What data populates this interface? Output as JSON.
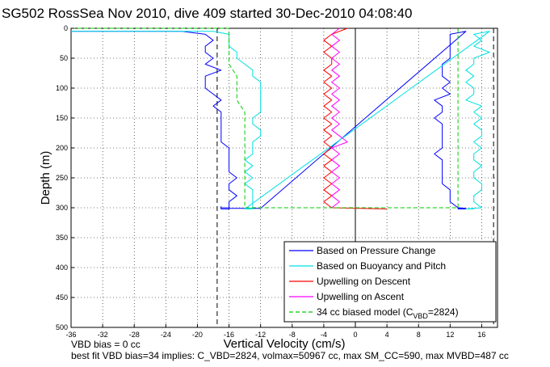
{
  "chart_data": {
    "type": "line",
    "title": "SG502 RossSea Nov 2010, dive 409 started 30-Dec-2010 04:08:40",
    "xlabel": "Vertical Velocity (cm/s)",
    "ylabel": "Depth (m)",
    "xlim": [
      -36,
      18
    ],
    "ylim": [
      500,
      0
    ],
    "y_reversed": true,
    "grid": true,
    "x_ticks": [
      "-36",
      "-32",
      "-28",
      "-24",
      "-20",
      "-16",
      "-12",
      "-8",
      "-4",
      "0",
      "4",
      "8",
      "12",
      "16"
    ],
    "y_ticks": [
      "0",
      "50",
      "100",
      "150",
      "200",
      "250",
      "300",
      "350",
      "400",
      "450",
      "500"
    ],
    "legend_position": "bottom-right",
    "series": [
      {
        "name": "Based on Pressure Change",
        "color": "#0000ff",
        "x": [
          -36,
          -22,
          -19,
          -18,
          -19,
          -19,
          -18,
          -19,
          -17,
          -19,
          -19,
          -19,
          -18,
          -17,
          -18,
          -17,
          -17,
          -17,
          -17,
          -17,
          -17,
          -16,
          -16,
          -16,
          -16,
          -16,
          -15,
          -16,
          -16,
          -15,
          -16,
          -16,
          -17,
          -17,
          -17,
          -17,
          -17,
          -16,
          -16,
          -12,
          14,
          12,
          12,
          12,
          12,
          12,
          11,
          11,
          11,
          12,
          11,
          12,
          10,
          11,
          11,
          10,
          11,
          11,
          11,
          11,
          11,
          10,
          11,
          11,
          11,
          11,
          11,
          12,
          12,
          12,
          13,
          14,
          13,
          14,
          13,
          13,
          14,
          13,
          13,
          14,
          13,
          13,
          14
        ],
        "y": [
          5,
          5,
          10,
          20,
          30,
          40,
          50,
          60,
          70,
          80,
          90,
          100,
          110,
          120,
          130,
          140,
          150,
          160,
          170,
          180,
          190,
          200,
          210,
          220,
          230,
          240,
          250,
          260,
          270,
          280,
          290,
          300,
          300,
          298,
          300,
          301,
          302,
          302,
          301,
          301,
          5,
          10,
          20,
          30,
          40,
          50,
          60,
          70,
          80,
          90,
          100,
          110,
          120,
          130,
          140,
          150,
          160,
          170,
          180,
          190,
          200,
          210,
          220,
          230,
          240,
          250,
          260,
          270,
          280,
          290,
          300,
          301,
          302,
          302,
          301,
          301,
          302,
          302,
          301,
          301,
          302,
          302,
          301
        ]
      },
      {
        "name": "Based on Buoyancy and Pitch",
        "color": "#00e0e0",
        "x": [
          -36,
          -18,
          -16,
          -16,
          -16,
          -15,
          -15,
          -14,
          -13,
          -13,
          -12,
          -12,
          -12,
          -12,
          -12,
          -12,
          -13,
          -13,
          -12,
          -12,
          -13,
          -13,
          -13,
          -14,
          -13,
          -14,
          -13,
          -14,
          -13,
          -13,
          -13,
          -13,
          -13,
          -13,
          -13,
          -14,
          -13,
          -14,
          -13,
          -14,
          17,
          15,
          16,
          15,
          17,
          15,
          15,
          14,
          15,
          14,
          15,
          15,
          14,
          16,
          15,
          16,
          15,
          16,
          16,
          15,
          16,
          15,
          15,
          16,
          15,
          15,
          16,
          16,
          15,
          15,
          16,
          15,
          15,
          14,
          15,
          15,
          14
        ],
        "y": [
          5,
          5,
          10,
          20,
          30,
          40,
          50,
          60,
          70,
          80,
          90,
          100,
          110,
          120,
          130,
          140,
          150,
          160,
          170,
          180,
          190,
          200,
          210,
          220,
          230,
          240,
          250,
          260,
          270,
          280,
          290,
          300,
          300,
          301,
          302,
          302,
          301,
          301,
          302,
          302,
          5,
          10,
          20,
          30,
          40,
          50,
          60,
          70,
          80,
          90,
          100,
          110,
          120,
          130,
          140,
          150,
          160,
          170,
          180,
          190,
          200,
          210,
          220,
          230,
          240,
          250,
          260,
          270,
          280,
          290,
          300,
          301,
          302,
          302,
          301,
          301,
          302
        ]
      },
      {
        "name": "Upwelling on Descent",
        "color": "#ff0000",
        "x": [
          -1,
          -3,
          -4,
          -3,
          -4,
          -3,
          -3,
          -4,
          -3,
          -4,
          -3,
          -4,
          -3,
          -4,
          -3,
          -4,
          -3,
          -4,
          -3,
          -4,
          -3,
          -4,
          -3,
          -4,
          -3,
          -4,
          -3,
          -4,
          -3,
          -4,
          -3,
          4
        ],
        "y": [
          0,
          10,
          20,
          30,
          40,
          50,
          60,
          70,
          80,
          90,
          100,
          110,
          120,
          130,
          140,
          150,
          160,
          170,
          180,
          190,
          200,
          210,
          220,
          230,
          240,
          250,
          260,
          270,
          280,
          290,
          300,
          302
        ]
      },
      {
        "name": "Upwelling on Ascent",
        "color": "#ff00ff",
        "x": [
          -3,
          -2,
          -3,
          -2,
          -3,
          -2,
          -3,
          -2,
          -3,
          -2,
          -3,
          -1,
          -2,
          -3,
          -2,
          -3,
          -2,
          -3,
          -2,
          -3,
          -2,
          -3,
          -2,
          -3,
          -2,
          -3,
          -2,
          -3,
          -2,
          -3,
          -2
        ],
        "y": [
          300,
          290,
          280,
          270,
          260,
          250,
          240,
          230,
          220,
          210,
          200,
          190,
          180,
          170,
          160,
          150,
          140,
          130,
          120,
          110,
          100,
          90,
          80,
          70,
          60,
          50,
          40,
          30,
          20,
          10,
          0
        ]
      },
      {
        "name": "34 cc biased model (C_VBD=2824)",
        "color": "#00cc00",
        "dashed": true,
        "x": [
          -36,
          -16,
          -16,
          -16,
          -16,
          -15,
          -15,
          -15,
          -14,
          -14,
          -14,
          -14,
          -14,
          -14,
          -14,
          -14,
          -14,
          -14,
          -14,
          -14,
          -14,
          -14,
          -14,
          -14,
          -14,
          13,
          13,
          13,
          13,
          13,
          13,
          13,
          13,
          13,
          13,
          13,
          13,
          13,
          13,
          13,
          13,
          13,
          13,
          13,
          13,
          13,
          13,
          13,
          13,
          13
        ],
        "y": [
          0,
          0,
          20,
          40,
          60,
          80,
          100,
          120,
          140,
          160,
          180,
          200,
          220,
          240,
          260,
          280,
          300,
          300,
          300,
          300,
          300,
          300,
          300,
          300,
          300,
          300,
          280,
          260,
          240,
          220,
          200,
          180,
          160,
          140,
          120,
          100,
          80,
          60,
          40,
          20,
          0,
          0,
          0,
          0,
          0,
          0,
          0,
          0,
          0,
          0
        ]
      }
    ],
    "legend_entries": [
      {
        "label": "Based on Pressure Change",
        "color": "#0000ff",
        "dash": false
      },
      {
        "label": "Based on Buoyancy and Pitch",
        "color": "#00e0e0",
        "dash": false
      },
      {
        "label": "Upwelling on Descent",
        "color": "#ff0000",
        "dash": false
      },
      {
        "label": "Upwelling on Ascent",
        "color": "#ff00ff",
        "dash": false
      },
      {
        "label": "34 cc biased model (C",
        "sub": "VBD",
        "tail": "=2824)",
        "color": "#00cc00",
        "dash": true
      }
    ],
    "reference_lines": {
      "vertical_solid_x": 0,
      "vertical_dashed_x": [
        -17.5,
        17.5
      ]
    }
  },
  "footnotes": {
    "line1": "VBD bias = 0 cc",
    "line2": "best fit VBD bias=34 implies: C_VBD=2824, volmax=50967 cc, max SM_CC=590, max MVBD=487 cc"
  }
}
